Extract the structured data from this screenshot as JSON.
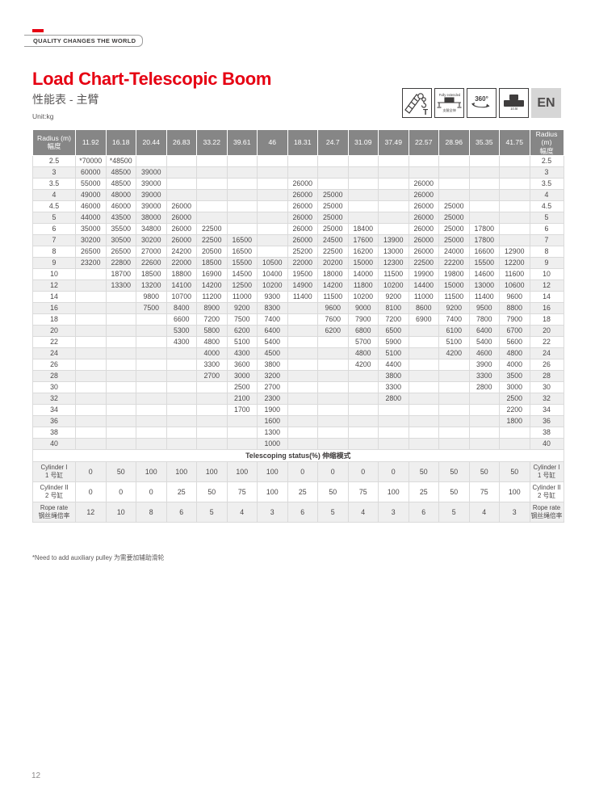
{
  "brand": {
    "tagline": "QUALITY CHANGES THE WORLD"
  },
  "header": {
    "title": "Load Chart-Telescopic Boom",
    "subtitle": "性能表 - 主臂",
    "unit": "Unit:kg"
  },
  "badges": {
    "boom": {
      "label": "T"
    },
    "outrigger": {
      "top": "Fully extended",
      "bottom": "支腿全伸"
    },
    "rotation": {
      "label": "360°"
    },
    "counterweight": {
      "label": "10.5t"
    },
    "language": {
      "label": "EN"
    }
  },
  "table": {
    "corner": {
      "line1": "Radius (m)",
      "line2": "幅度"
    },
    "boom_lengths": [
      "11.92",
      "16.18",
      "20.44",
      "26.83",
      "33.22",
      "39.61",
      "46",
      "18.31",
      "24.7",
      "31.09",
      "37.49",
      "22.57",
      "28.96",
      "35.35",
      "41.75"
    ],
    "rows": [
      {
        "radius": "2.5",
        "values": [
          "*70000",
          "*48500",
          "",
          "",
          "",
          "",
          "",
          "",
          "",
          "",
          "",
          "",
          "",
          "",
          ""
        ]
      },
      {
        "radius": "3",
        "values": [
          "60000",
          "48500",
          "39000",
          "",
          "",
          "",
          "",
          "",
          "",
          "",
          "",
          "",
          "",
          "",
          ""
        ]
      },
      {
        "radius": "3.5",
        "values": [
          "55000",
          "48500",
          "39000",
          "",
          "",
          "",
          "",
          "26000",
          "",
          "",
          "",
          "26000",
          "",
          "",
          ""
        ]
      },
      {
        "radius": "4",
        "values": [
          "49000",
          "48000",
          "39000",
          "",
          "",
          "",
          "",
          "26000",
          "25000",
          "",
          "",
          "26000",
          "",
          "",
          ""
        ]
      },
      {
        "radius": "4.5",
        "values": [
          "46000",
          "46000",
          "39000",
          "26000",
          "",
          "",
          "",
          "26000",
          "25000",
          "",
          "",
          "26000",
          "25000",
          "",
          ""
        ]
      },
      {
        "radius": "5",
        "values": [
          "44000",
          "43500",
          "38000",
          "26000",
          "",
          "",
          "",
          "26000",
          "25000",
          "",
          "",
          "26000",
          "25000",
          "",
          ""
        ]
      },
      {
        "radius": "6",
        "values": [
          "35000",
          "35500",
          "34800",
          "26000",
          "22500",
          "",
          "",
          "26000",
          "25000",
          "18400",
          "",
          "26000",
          "25000",
          "17800",
          ""
        ]
      },
      {
        "radius": "7",
        "values": [
          "30200",
          "30500",
          "30200",
          "26000",
          "22500",
          "16500",
          "",
          "26000",
          "24500",
          "17600",
          "13900",
          "26000",
          "25000",
          "17800",
          ""
        ]
      },
      {
        "radius": "8",
        "values": [
          "26500",
          "26500",
          "27000",
          "24200",
          "20500",
          "16500",
          "",
          "25200",
          "22500",
          "16200",
          "13000",
          "26000",
          "24000",
          "16600",
          "12900"
        ]
      },
      {
        "radius": "9",
        "values": [
          "23200",
          "22800",
          "22600",
          "22000",
          "18500",
          "15500",
          "10500",
          "22000",
          "20200",
          "15000",
          "12300",
          "22500",
          "22200",
          "15500",
          "12200"
        ]
      },
      {
        "radius": "10",
        "values": [
          "",
          "18700",
          "18500",
          "18800",
          "16900",
          "14500",
          "10400",
          "19500",
          "18000",
          "14000",
          "11500",
          "19900",
          "19800",
          "14600",
          "11600"
        ]
      },
      {
        "radius": "12",
        "values": [
          "",
          "13300",
          "13200",
          "14100",
          "14200",
          "12500",
          "10200",
          "14900",
          "14200",
          "11800",
          "10200",
          "14400",
          "15000",
          "13000",
          "10600"
        ]
      },
      {
        "radius": "14",
        "values": [
          "",
          "",
          "9800",
          "10700",
          "11200",
          "11000",
          "9300",
          "11400",
          "11500",
          "10200",
          "9200",
          "11000",
          "11500",
          "11400",
          "9600"
        ]
      },
      {
        "radius": "16",
        "values": [
          "",
          "",
          "7500",
          "8400",
          "8900",
          "9200",
          "8300",
          "",
          "9600",
          "9000",
          "8100",
          "8600",
          "9200",
          "9500",
          "8800"
        ]
      },
      {
        "radius": "18",
        "values": [
          "",
          "",
          "",
          "6600",
          "7200",
          "7500",
          "7400",
          "",
          "7600",
          "7900",
          "7200",
          "6900",
          "7400",
          "7800",
          "7900"
        ]
      },
      {
        "radius": "20",
        "values": [
          "",
          "",
          "",
          "5300",
          "5800",
          "6200",
          "6400",
          "",
          "6200",
          "6800",
          "6500",
          "",
          "6100",
          "6400",
          "6700"
        ]
      },
      {
        "radius": "22",
        "values": [
          "",
          "",
          "",
          "4300",
          "4800",
          "5100",
          "5400",
          "",
          "",
          "5700",
          "5900",
          "",
          "5100",
          "5400",
          "5600"
        ]
      },
      {
        "radius": "24",
        "values": [
          "",
          "",
          "",
          "",
          "4000",
          "4300",
          "4500",
          "",
          "",
          "4800",
          "5100",
          "",
          "4200",
          "4600",
          "4800"
        ]
      },
      {
        "radius": "26",
        "values": [
          "",
          "",
          "",
          "",
          "3300",
          "3600",
          "3800",
          "",
          "",
          "4200",
          "4400",
          "",
          "",
          "3900",
          "4000"
        ]
      },
      {
        "radius": "28",
        "values": [
          "",
          "",
          "",
          "",
          "2700",
          "3000",
          "3200",
          "",
          "",
          "",
          "3800",
          "",
          "",
          "3300",
          "3500"
        ]
      },
      {
        "radius": "30",
        "values": [
          "",
          "",
          "",
          "",
          "",
          "2500",
          "2700",
          "",
          "",
          "",
          "3300",
          "",
          "",
          "2800",
          "3000"
        ]
      },
      {
        "radius": "32",
        "values": [
          "",
          "",
          "",
          "",
          "",
          "2100",
          "2300",
          "",
          "",
          "",
          "2800",
          "",
          "",
          "",
          "2500"
        ]
      },
      {
        "radius": "34",
        "values": [
          "",
          "",
          "",
          "",
          "",
          "1700",
          "1900",
          "",
          "",
          "",
          "",
          "",
          "",
          "",
          "2200"
        ]
      },
      {
        "radius": "36",
        "values": [
          "",
          "",
          "",
          "",
          "",
          "",
          "1600",
          "",
          "",
          "",
          "",
          "",
          "",
          "",
          "1800"
        ]
      },
      {
        "radius": "38",
        "values": [
          "",
          "",
          "",
          "",
          "",
          "",
          "1300",
          "",
          "",
          "",
          "",
          "",
          "",
          "",
          ""
        ]
      },
      {
        "radius": "40",
        "values": [
          "",
          "",
          "",
          "",
          "",
          "",
          "1000",
          "",
          "",
          "",
          "",
          "",
          "",
          "",
          ""
        ]
      }
    ],
    "telescoping_header": "Telescoping status(%) 伸缩模式",
    "status_rows": [
      {
        "label": "Cylinder I",
        "label_cn": "1 号缸",
        "values": [
          "0",
          "50",
          "100",
          "100",
          "100",
          "100",
          "100",
          "0",
          "0",
          "0",
          "0",
          "50",
          "50",
          "50",
          "50"
        ]
      },
      {
        "label": "Cylinder II",
        "label_cn": "2 号缸",
        "values": [
          "0",
          "0",
          "0",
          "25",
          "50",
          "75",
          "100",
          "25",
          "50",
          "75",
          "100",
          "25",
          "50",
          "75",
          "100"
        ]
      },
      {
        "label": "Rope rate",
        "label_cn": "钢丝绳倍率",
        "values": [
          "12",
          "10",
          "8",
          "6",
          "5",
          "4",
          "3",
          "6",
          "5",
          "4",
          "3",
          "6",
          "5",
          "4",
          "3"
        ]
      }
    ]
  },
  "footnote": "*Need to add auxiliary pulley 为需要加辅助滑轮",
  "page_number": "12"
}
